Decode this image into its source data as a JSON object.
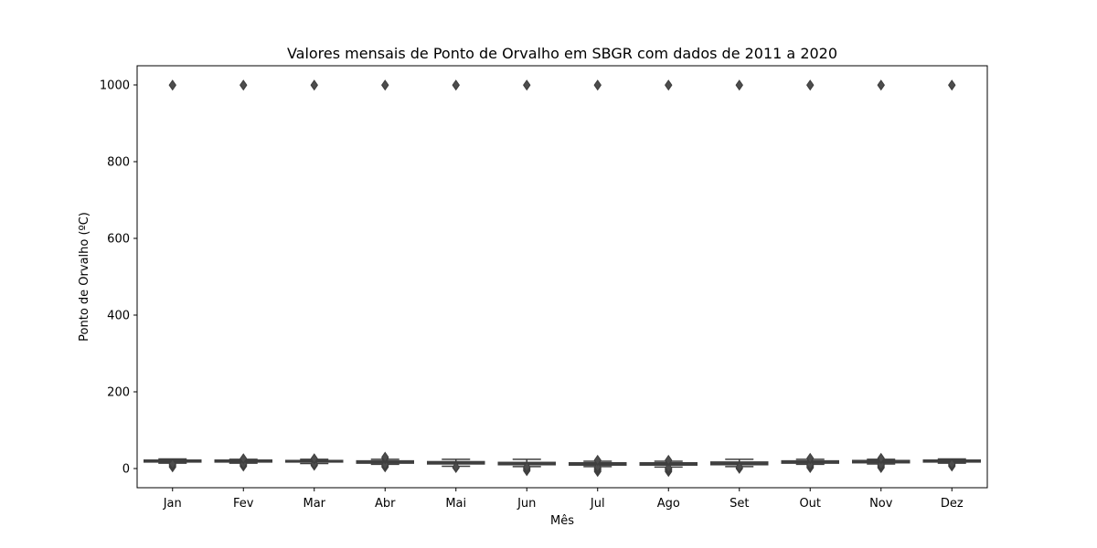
{
  "chart_data": {
    "type": "box",
    "title": "Valores mensais de Ponto de Orvalho em SBGR com dados de 2011 a 2020",
    "xlabel": "Mês",
    "ylabel": "Ponto de Orvalho (ºC)",
    "ylim": [
      -50,
      1050
    ],
    "yticks": [
      0,
      200,
      400,
      600,
      800,
      1000
    ],
    "grid": false,
    "categories": [
      "Jan",
      "Fev",
      "Mar",
      "Abr",
      "Mai",
      "Jun",
      "Jul",
      "Ago",
      "Set",
      "Out",
      "Nov",
      "Dez"
    ],
    "boxes": [
      {
        "whisker_low": 14,
        "q1": 17,
        "median": 19,
        "q3": 22,
        "whisker_high": 25,
        "outliers_low": [
          4,
          6,
          8,
          10,
          12
        ],
        "outliers_high": [
          999,
          1000
        ]
      },
      {
        "whisker_low": 14,
        "q1": 17,
        "median": 19,
        "q3": 22,
        "whisker_high": 24,
        "outliers_low": [
          6,
          8,
          10,
          12
        ],
        "outliers_high": [
          25,
          26,
          999,
          1000
        ]
      },
      {
        "whisker_low": 13,
        "q1": 17,
        "median": 19,
        "q3": 21,
        "whisker_high": 24,
        "outliers_low": [
          8,
          10,
          12
        ],
        "outliers_high": [
          25,
          26,
          999,
          1000
        ]
      },
      {
        "whisker_low": 11,
        "q1": 14,
        "median": 17,
        "q3": 20,
        "whisker_high": 24,
        "outliers_low": [
          4,
          6,
          8,
          10
        ],
        "outliers_high": [
          25,
          27,
          30,
          999,
          1000
        ]
      },
      {
        "whisker_low": 6,
        "q1": 12,
        "median": 15,
        "q3": 18,
        "whisker_high": 24,
        "outliers_low": [
          2,
          4
        ],
        "outliers_high": [
          999,
          1000
        ]
      },
      {
        "whisker_low": 5,
        "q1": 10,
        "median": 13,
        "q3": 16,
        "whisker_high": 24,
        "outliers_low": [
          -6,
          -4,
          -2,
          0,
          2,
          4
        ],
        "outliers_high": [
          999,
          1000
        ]
      },
      {
        "whisker_low": 5,
        "q1": 9,
        "median": 12,
        "q3": 15,
        "whisker_high": 19,
        "outliers_low": [
          -8,
          -6,
          -4,
          -2,
          0,
          2,
          4
        ],
        "outliers_high": [
          20,
          22,
          999,
          1000
        ]
      },
      {
        "whisker_low": 4,
        "q1": 9,
        "median": 12,
        "q3": 15,
        "whisker_high": 19,
        "outliers_low": [
          -8,
          -6,
          -4,
          -2,
          0,
          2
        ],
        "outliers_high": [
          20,
          22,
          999,
          1000
        ]
      },
      {
        "whisker_low": 5,
        "q1": 10,
        "median": 13,
        "q3": 17,
        "whisker_high": 24,
        "outliers_low": [
          0,
          2,
          4
        ],
        "outliers_high": [
          999,
          1000
        ]
      },
      {
        "whisker_low": 11,
        "q1": 14,
        "median": 17,
        "q3": 20,
        "whisker_high": 24,
        "outliers_low": [
          2,
          4,
          6,
          8,
          10
        ],
        "outliers_high": [
          25,
          27,
          999,
          1000
        ]
      },
      {
        "whisker_low": 12,
        "q1": 15,
        "median": 18,
        "q3": 21,
        "whisker_high": 24,
        "outliers_low": [
          2,
          4,
          6,
          8,
          10
        ],
        "outliers_high": [
          25,
          27,
          999,
          1000
        ]
      },
      {
        "whisker_low": 14,
        "q1": 17,
        "median": 19,
        "q3": 22,
        "whisker_high": 25,
        "outliers_low": [
          6,
          8,
          10,
          12
        ],
        "outliers_high": [
          999,
          1000
        ]
      }
    ],
    "colors": {
      "box_edge": "#3f3f3f",
      "box_fill": "#4d4d4d",
      "axis": "#000000"
    }
  }
}
